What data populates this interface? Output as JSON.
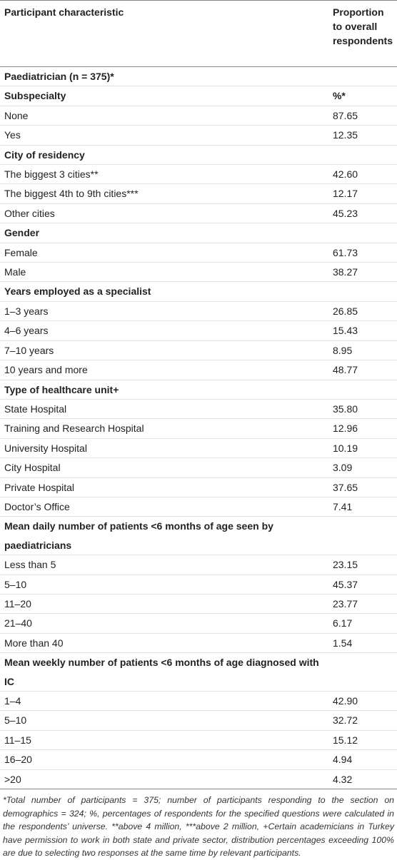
{
  "table": {
    "columns": [
      "Participant characteristic",
      "Proportion to overall respondents"
    ],
    "rows": [
      {
        "section": "Paediatrician (n = 375)*"
      },
      {
        "section": "Subspecialty",
        "value": "%*"
      },
      {
        "label": "None",
        "value": "87.65"
      },
      {
        "label": "Yes",
        "value": "12.35"
      },
      {
        "section": "City of residency"
      },
      {
        "label": "The biggest 3 cities**",
        "value": "42.60"
      },
      {
        "label": "The biggest 4th to 9th cities***",
        "value": "12.17"
      },
      {
        "label": "Other cities",
        "value": "45.23"
      },
      {
        "section": "Gender"
      },
      {
        "label": "Female",
        "value": "61.73"
      },
      {
        "label": "Male",
        "value": "38.27"
      },
      {
        "section": "Years employed as a specialist"
      },
      {
        "label": "1–3 years",
        "value": "26.85"
      },
      {
        "label": "4–6 years",
        "value": "15.43"
      },
      {
        "label": "7–10 years",
        "value": "8.95"
      },
      {
        "label": "10 years and more",
        "value": "48.77"
      },
      {
        "section": "Type of healthcare unit+"
      },
      {
        "label": "State Hospital",
        "value": "35.80"
      },
      {
        "label": "Training and Research Hospital",
        "value": "12.96"
      },
      {
        "label": "University Hospital",
        "value": "10.19"
      },
      {
        "label": "City Hospital",
        "value": "3.09"
      },
      {
        "label": "Private Hospital",
        "value": "37.65"
      },
      {
        "label": "Doctor’s Office",
        "value": "7.41"
      },
      {
        "section": "Mean daily number of patients <6 months of age seen by paediatricians"
      },
      {
        "label": "Less than 5",
        "value": "23.15"
      },
      {
        "label": "5–10",
        "value": "45.37"
      },
      {
        "label": "11–20",
        "value": "23.77"
      },
      {
        "label": "21–40",
        "value": "6.17"
      },
      {
        "label": "More than 40",
        "value": "1.54"
      },
      {
        "section": "Mean weekly number of patients <6 months of age diagnosed with IC"
      },
      {
        "label": "1–4",
        "value": "42.90"
      },
      {
        "label": "5–10",
        "value": "32.72"
      },
      {
        "label": "11–15",
        "value": "15.12"
      },
      {
        "label": "16–20",
        "value": "4.94"
      },
      {
        "label": ">20",
        "value": "4.32"
      }
    ],
    "footnote": "*Total number of participants = 375; number of participants responding to the section on demographics = 324; %, percentages of respondents for the specified questions were calculated in the respondents’ universe. **above 4 million, ***above 2 million, +Certain academicians in Turkey have permission to work in both state and private sector, distribution percentages exceeding 100% are due to selecting two responses at the same time by relevant participants."
  }
}
